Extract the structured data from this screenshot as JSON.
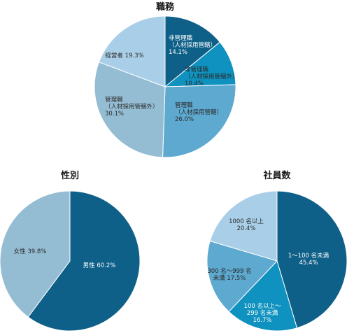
{
  "chart_data": [
    {
      "type": "pie",
      "title": "職務",
      "slices": [
        {
          "label": [
            "非管理職",
            "（人材採用管轄）",
            "14.1%"
          ],
          "value": 14.1,
          "color": "#0f6088",
          "text": "light"
        },
        {
          "label": [
            "非管理職",
            "（人材採用管轄外）",
            "10.4%"
          ],
          "value": 10.4,
          "color": "#0f92bf",
          "text": "dark"
        },
        {
          "label": [
            "管理職",
            "（人材採用管轄）",
            "26.0%"
          ],
          "value": 26.0,
          "color": "#5ea9cf",
          "text": "dark"
        },
        {
          "label": [
            "管理職",
            "（人材採用管轄外）",
            "30.1%"
          ],
          "value": 30.1,
          "color": "#94bdd3",
          "text": "dark"
        },
        {
          "label": [
            "経営者 19.3%"
          ],
          "value": 19.3,
          "color": "#a9cfe8",
          "text": "dark"
        }
      ]
    },
    {
      "type": "pie",
      "title": "性別",
      "slices": [
        {
          "label": [
            "男性 60.2%"
          ],
          "value": 60.2,
          "color": "#0f6088",
          "text": "light"
        },
        {
          "label": [
            "女性 39.8%"
          ],
          "value": 39.8,
          "color": "#94bdd3",
          "text": "dark"
        }
      ]
    },
    {
      "type": "pie",
      "title": "社員数",
      "slices": [
        {
          "label": [
            "1～100 名未満",
            "45.4%"
          ],
          "value": 45.4,
          "color": "#0f6088",
          "text": "light"
        },
        {
          "label": [
            "100 名以上～",
            "299 名未満",
            "16.7%"
          ],
          "value": 16.7,
          "color": "#0f92bf",
          "text": "light"
        },
        {
          "label": [
            "300 名～999 名",
            "未満 17.5%"
          ],
          "value": 17.5,
          "color": "#5ea9cf",
          "text": "dark"
        },
        {
          "label": [
            "1000 名以上",
            "20.4%"
          ],
          "value": 20.4,
          "color": "#a9cfe8",
          "text": "dark"
        }
      ]
    }
  ]
}
